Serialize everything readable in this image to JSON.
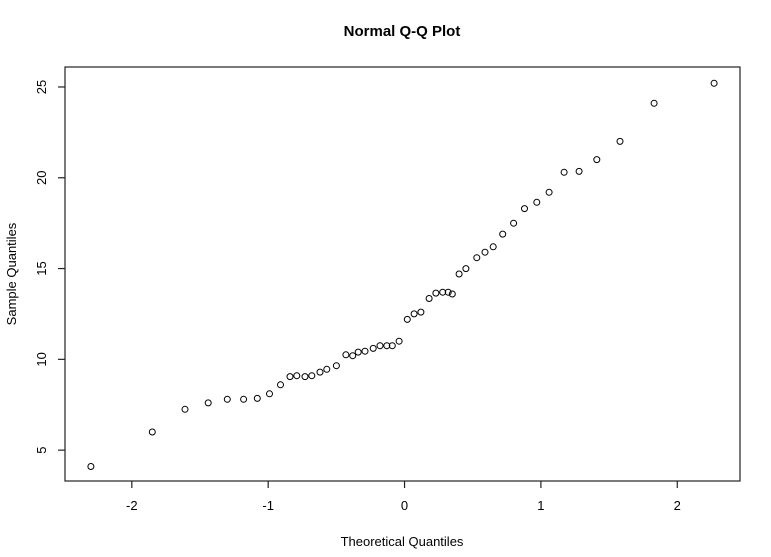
{
  "chart_data": {
    "type": "scatter",
    "title": "Normal Q-Q Plot",
    "xlabel": "Theoretical Quantiles",
    "ylabel": "Sample Quantiles",
    "x_ticks": [
      -2,
      -1,
      0,
      1,
      2
    ],
    "y_ticks": [
      5,
      10,
      15,
      20,
      25
    ],
    "xlim": [
      -2.49,
      2.46
    ],
    "ylim": [
      3.3,
      26.1
    ],
    "grid": false,
    "legend": null,
    "marker": "open-circle",
    "marker_color": "#000000",
    "axis_color": "#222222",
    "background": "#ffffff",
    "points": [
      [
        -2.3,
        4.1
      ],
      [
        -1.85,
        6.0
      ],
      [
        -1.61,
        7.25
      ],
      [
        -1.44,
        7.6
      ],
      [
        -1.3,
        7.8
      ],
      [
        -1.18,
        7.8
      ],
      [
        -1.08,
        7.85
      ],
      [
        -0.99,
        8.1
      ],
      [
        -0.91,
        8.6
      ],
      [
        -0.84,
        9.05
      ],
      [
        -0.79,
        9.1
      ],
      [
        -0.73,
        9.05
      ],
      [
        -0.68,
        9.1
      ],
      [
        -0.62,
        9.3
      ],
      [
        -0.57,
        9.45
      ],
      [
        -0.5,
        9.65
      ],
      [
        -0.43,
        10.25
      ],
      [
        -0.38,
        10.2
      ],
      [
        -0.34,
        10.4
      ],
      [
        -0.29,
        10.45
      ],
      [
        -0.23,
        10.6
      ],
      [
        -0.18,
        10.75
      ],
      [
        -0.13,
        10.75
      ],
      [
        -0.09,
        10.75
      ],
      [
        -0.04,
        11.0
      ],
      [
        0.02,
        12.2
      ],
      [
        0.07,
        12.5
      ],
      [
        0.12,
        12.6
      ],
      [
        0.18,
        13.35
      ],
      [
        0.23,
        13.65
      ],
      [
        0.28,
        13.7
      ],
      [
        0.32,
        13.7
      ],
      [
        0.35,
        13.6
      ],
      [
        0.4,
        14.7
      ],
      [
        0.45,
        15.0
      ],
      [
        0.53,
        15.6
      ],
      [
        0.59,
        15.9
      ],
      [
        0.65,
        16.2
      ],
      [
        0.72,
        16.9
      ],
      [
        0.8,
        17.5
      ],
      [
        0.88,
        18.3
      ],
      [
        0.97,
        18.65
      ],
      [
        1.06,
        19.2
      ],
      [
        1.17,
        20.3
      ],
      [
        1.28,
        20.35
      ],
      [
        1.41,
        21.0
      ],
      [
        1.58,
        22.0
      ],
      [
        1.83,
        24.1
      ],
      [
        2.27,
        25.2
      ]
    ]
  }
}
